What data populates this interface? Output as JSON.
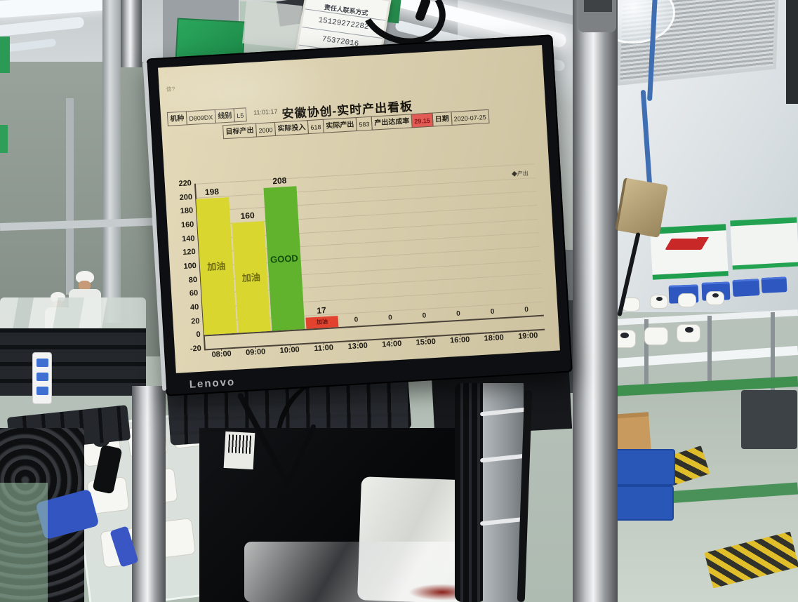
{
  "scene": {
    "contact_sign": {
      "title": "责任人联系方式",
      "line1": "15129272282",
      "line2": "75372016"
    }
  },
  "monitor": {
    "brand": "Lenovo",
    "overlay_text": "信?"
  },
  "dashboard": {
    "time": "11:01:17",
    "title": "安徽协创-实时产出看板",
    "fields": [
      {
        "label": "机种",
        "value": "D809DX"
      },
      {
        "label": "线别",
        "value": "L5"
      },
      {
        "label": "目标产出",
        "value": "2000"
      },
      {
        "label": "实际投入",
        "value": "618"
      },
      {
        "label": "实际产出",
        "value": "583"
      },
      {
        "label": "产出达成率",
        "value": "29.15",
        "highlight": true
      },
      {
        "label": "日期",
        "value": "2020-07-25"
      }
    ]
  },
  "chart_data": {
    "type": "bar",
    "title": "安徽协创-实时产出看板",
    "categories": [
      "08:00",
      "09:00",
      "10:00",
      "11:00",
      "13:00",
      "14:00",
      "15:00",
      "16:00",
      "18:00",
      "19:00"
    ],
    "values": [
      198,
      160,
      208,
      17,
      0,
      0,
      0,
      0,
      0,
      0
    ],
    "bar_labels": [
      "加油",
      "加油",
      "GOOD",
      "加油",
      "",
      "",
      "",
      "",
      "",
      ""
    ],
    "bar_colors": [
      "#d9d630",
      "#d9d630",
      "#61b32e",
      "#e2432f",
      "",
      "",
      "",
      "",
      "",
      ""
    ],
    "bar_label_colors": [
      "#6e6a12",
      "#6e6a12",
      "#124d0c",
      "#6e1410",
      "",
      "",
      "",
      "",
      "",
      ""
    ],
    "zero_label": "0",
    "ylim": [
      -20,
      220
    ],
    "ytick_step": 20,
    "xlabel": "",
    "ylabel": "",
    "legend": [
      "产出"
    ],
    "legend_marker": "◆",
    "legend_position": "right",
    "grid": true
  },
  "colors": {
    "screen_bg": "#d9cfae",
    "rate_cell_bg": "#e25b55",
    "rate_cell_text": "#7e1616"
  }
}
